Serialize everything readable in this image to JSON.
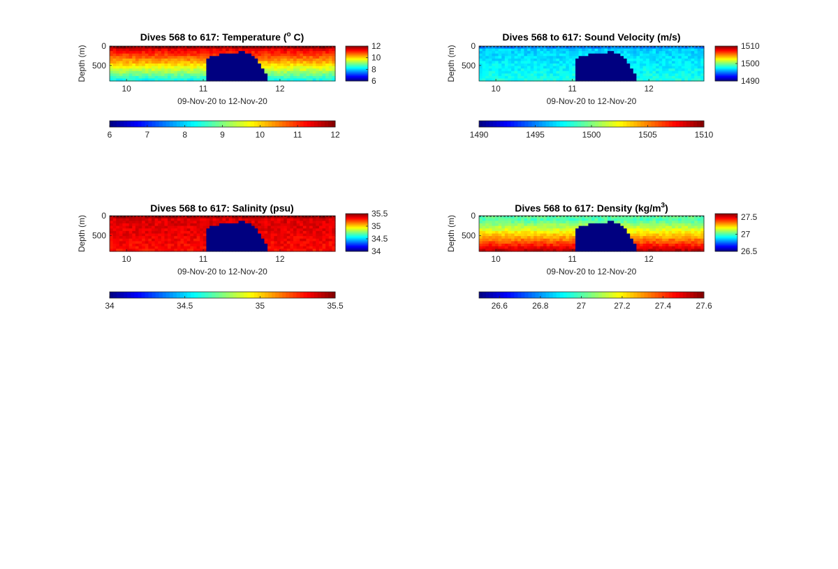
{
  "chart_data": [
    {
      "type": "heatmap",
      "title": "Dives 568 to 617: Temperature (",
      "title_sup": "o",
      "title_tail": " C)",
      "xlabel": "09-Nov-20 to 12-Nov-20",
      "ylabel": "Depth (m)",
      "x_ticks": [
        "10",
        "11",
        "12"
      ],
      "x_tick_values": [
        10,
        11,
        12
      ],
      "xlim": [
        9.78,
        12.72
      ],
      "y_ticks": [
        "0",
        "500"
      ],
      "y_tick_values": [
        0,
        500
      ],
      "ylim": [
        0,
        900
      ],
      "y_reversed": true,
      "colormap": "jet",
      "clim": [
        6,
        12
      ],
      "side_colorbar_ticks": [
        "12",
        "10",
        "8",
        "6"
      ],
      "side_colorbar_values": [
        12,
        10,
        8,
        6
      ],
      "bottom_colorbar_ticks": [
        "6",
        "7",
        "8",
        "9",
        "10",
        "11",
        "12"
      ],
      "bottom_colorbar_values": [
        6,
        7,
        8,
        9,
        10,
        11,
        12
      ],
      "surface_value": 11.6,
      "bottom_value": 8.2,
      "gap_value": 6,
      "gap_days": [
        11.02,
        11.85
      ]
    },
    {
      "type": "heatmap",
      "title": "Dives 568 to 617: Sound Velocity (m/s)",
      "title_sup": "",
      "title_tail": "",
      "xlabel": "09-Nov-20 to 12-Nov-20",
      "ylabel": "Depth (m)",
      "x_ticks": [
        "10",
        "11",
        "12"
      ],
      "x_tick_values": [
        10,
        11,
        12
      ],
      "xlim": [
        9.78,
        12.72
      ],
      "y_ticks": [
        "0",
        "500"
      ],
      "y_tick_values": [
        0,
        500
      ],
      "ylim": [
        0,
        900
      ],
      "y_reversed": true,
      "colormap": "jet",
      "clim": [
        1490,
        1510
      ],
      "side_colorbar_ticks": [
        "1510",
        "1500",
        "1490"
      ],
      "side_colorbar_values": [
        1510,
        1500,
        1490
      ],
      "bottom_colorbar_ticks": [
        "1490",
        "1495",
        "1500",
        "1505",
        "1510"
      ],
      "bottom_colorbar_values": [
        1490,
        1495,
        1500,
        1505,
        1510
      ],
      "surface_value": 1496.5,
      "bottom_value": 1498.0,
      "gap_value": 1490,
      "gap_days": [
        11.02,
        11.85
      ]
    },
    {
      "type": "heatmap",
      "title": "Dives 568 to 617: Salinity (psu)",
      "title_sup": "",
      "title_tail": "",
      "xlabel": "09-Nov-20 to 12-Nov-20",
      "ylabel": "Depth (m)",
      "x_ticks": [
        "10",
        "11",
        "12"
      ],
      "x_tick_values": [
        10,
        11,
        12
      ],
      "xlim": [
        9.78,
        12.72
      ],
      "y_ticks": [
        "0",
        "500"
      ],
      "y_tick_values": [
        0,
        500
      ],
      "ylim": [
        0,
        900
      ],
      "y_reversed": true,
      "colormap": "jet",
      "clim": [
        34,
        35.5
      ],
      "side_colorbar_ticks": [
        "35.5",
        "35",
        "34.5",
        "34"
      ],
      "side_colorbar_values": [
        35.5,
        35,
        34.5,
        34
      ],
      "bottom_colorbar_ticks": [
        "34",
        "34.5",
        "35",
        "35.5"
      ],
      "bottom_colorbar_values": [
        34,
        34.5,
        35,
        35.5
      ],
      "surface_value": 35.37,
      "bottom_value": 35.3,
      "gap_value": 34,
      "gap_days": [
        11.02,
        11.85
      ]
    },
    {
      "type": "heatmap",
      "title": "Dives 568 to 617: Density (kg/m",
      "title_sup": "3",
      "title_tail": ")",
      "xlabel": "09-Nov-20 to 12-Nov-20",
      "ylabel": "Depth (m)",
      "x_ticks": [
        "10",
        "11",
        "12"
      ],
      "x_tick_values": [
        10,
        11,
        12
      ],
      "xlim": [
        9.78,
        12.72
      ],
      "y_ticks": [
        "0",
        "500"
      ],
      "y_tick_values": [
        0,
        500
      ],
      "ylim": [
        0,
        900
      ],
      "y_reversed": true,
      "colormap": "jet",
      "clim": [
        26.5,
        27.6
      ],
      "side_colorbar_ticks": [
        "27.5",
        "27",
        "26.5"
      ],
      "side_colorbar_values": [
        27.5,
        27,
        26.5
      ],
      "bottom_colorbar_ticks": [
        "26.6",
        "26.8",
        "27",
        "27.2",
        "27.4",
        "27.6"
      ],
      "bottom_colorbar_values": [
        26.6,
        26.8,
        27,
        27.2,
        27.4,
        27.6
      ],
      "surface_value": 26.95,
      "bottom_value": 27.55,
      "gap_value": 26.5,
      "gap_days": [
        11.02,
        11.85
      ]
    }
  ]
}
